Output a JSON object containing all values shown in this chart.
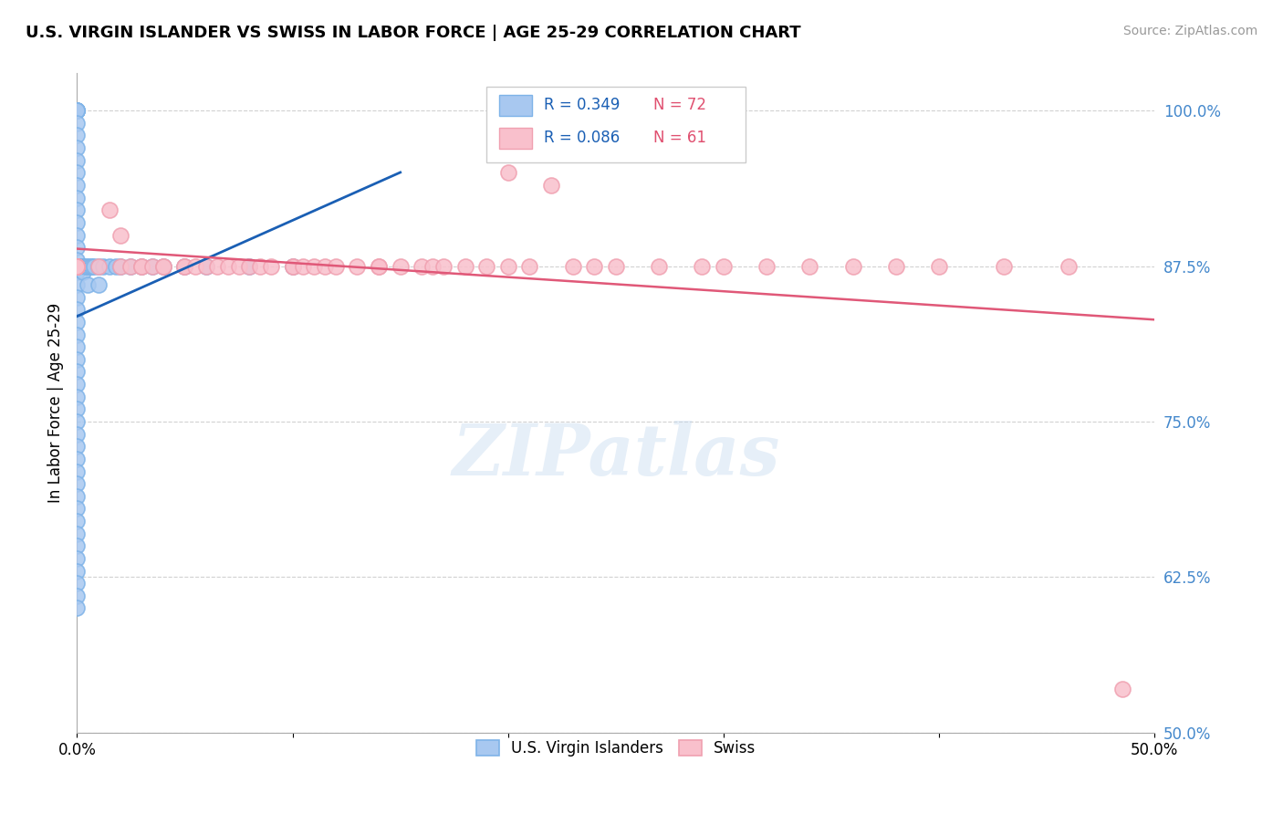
{
  "title": "U.S. VIRGIN ISLANDER VS SWISS IN LABOR FORCE | AGE 25-29 CORRELATION CHART",
  "source": "Source: ZipAtlas.com",
  "ylabel": "In Labor Force | Age 25-29",
  "xlim": [
    0.0,
    0.5
  ],
  "ylim": [
    0.5,
    1.03
  ],
  "xticks": [
    0.0,
    0.1,
    0.2,
    0.3,
    0.4,
    0.5
  ],
  "xtick_labels": [
    "0.0%",
    "",
    "",
    "",
    "",
    "50.0%"
  ],
  "yticks": [
    0.5,
    0.625,
    0.75,
    0.875,
    1.0
  ],
  "ytick_labels": [
    "50.0%",
    "62.5%",
    "75.0%",
    "87.5%",
    "100.0%"
  ],
  "blue_color": "#A8C8F0",
  "blue_edge_color": "#7EB3E8",
  "pink_color": "#F9C0CC",
  "pink_edge_color": "#F0A0B0",
  "blue_line_color": "#1A5FB4",
  "pink_line_color": "#E05878",
  "legend_R1": "R = 0.349",
  "legend_N1": "N = 72",
  "legend_R2": "R = 0.086",
  "legend_N2": "N = 61",
  "watermark_text": "ZIPatlas",
  "blue_x": [
    0.0,
    0.0,
    0.0,
    0.0,
    0.0,
    0.0,
    0.0,
    0.0,
    0.0,
    0.0,
    0.0,
    0.0,
    0.0,
    0.0,
    0.0,
    0.0,
    0.0,
    0.0,
    0.0,
    0.0,
    0.0,
    0.0,
    0.0,
    0.0,
    0.0,
    0.0,
    0.0,
    0.0,
    0.0,
    0.0,
    0.0,
    0.0,
    0.0,
    0.0,
    0.0,
    0.0,
    0.0,
    0.0,
    0.0,
    0.0,
    0.0,
    0.0,
    0.0,
    0.0,
    0.0,
    0.0,
    0.0,
    0.0,
    0.0,
    0.002,
    0.003,
    0.003,
    0.004,
    0.005,
    0.005,
    0.006,
    0.007,
    0.008,
    0.01,
    0.01,
    0.012,
    0.015,
    0.018,
    0.02,
    0.025,
    0.03,
    0.035,
    0.04,
    0.05,
    0.06,
    0.08,
    0.1
  ],
  "blue_y": [
    1.0,
    1.0,
    1.0,
    1.0,
    1.0,
    1.0,
    0.99,
    0.98,
    0.97,
    0.96,
    0.95,
    0.94,
    0.93,
    0.92,
    0.91,
    0.9,
    0.89,
    0.88,
    0.875,
    0.875,
    0.875,
    0.87,
    0.86,
    0.85,
    0.84,
    0.83,
    0.82,
    0.81,
    0.8,
    0.79,
    0.78,
    0.77,
    0.76,
    0.75,
    0.74,
    0.73,
    0.72,
    0.71,
    0.7,
    0.69,
    0.68,
    0.67,
    0.66,
    0.65,
    0.64,
    0.63,
    0.62,
    0.61,
    0.6,
    0.875,
    0.875,
    0.87,
    0.875,
    0.875,
    0.86,
    0.875,
    0.875,
    0.875,
    0.875,
    0.86,
    0.875,
    0.875,
    0.875,
    0.875,
    0.875,
    0.875,
    0.875,
    0.875,
    0.875,
    0.875,
    0.875,
    0.875
  ],
  "pink_x": [
    0.0,
    0.0,
    0.0,
    0.0,
    0.0,
    0.0,
    0.0,
    0.0,
    0.01,
    0.015,
    0.02,
    0.02,
    0.025,
    0.03,
    0.03,
    0.035,
    0.04,
    0.04,
    0.05,
    0.05,
    0.055,
    0.06,
    0.065,
    0.07,
    0.075,
    0.08,
    0.085,
    0.09,
    0.1,
    0.1,
    0.105,
    0.11,
    0.115,
    0.12,
    0.13,
    0.14,
    0.14,
    0.15,
    0.16,
    0.165,
    0.17,
    0.18,
    0.19,
    0.2,
    0.2,
    0.21,
    0.22,
    0.23,
    0.24,
    0.25,
    0.27,
    0.29,
    0.3,
    0.32,
    0.34,
    0.36,
    0.38,
    0.4,
    0.43,
    0.46,
    0.485
  ],
  "pink_y": [
    0.875,
    0.875,
    0.875,
    0.875,
    0.875,
    0.875,
    0.875,
    0.875,
    0.875,
    0.92,
    0.9,
    0.875,
    0.875,
    0.875,
    0.875,
    0.875,
    0.875,
    0.875,
    0.875,
    0.875,
    0.875,
    0.875,
    0.875,
    0.875,
    0.875,
    0.875,
    0.875,
    0.875,
    0.875,
    0.875,
    0.875,
    0.875,
    0.875,
    0.875,
    0.875,
    0.875,
    0.875,
    0.875,
    0.875,
    0.875,
    0.875,
    0.875,
    0.875,
    0.875,
    0.95,
    0.875,
    0.94,
    0.875,
    0.875,
    0.875,
    0.875,
    0.875,
    0.875,
    0.875,
    0.875,
    0.875,
    0.875,
    0.875,
    0.875,
    0.875,
    0.535
  ]
}
